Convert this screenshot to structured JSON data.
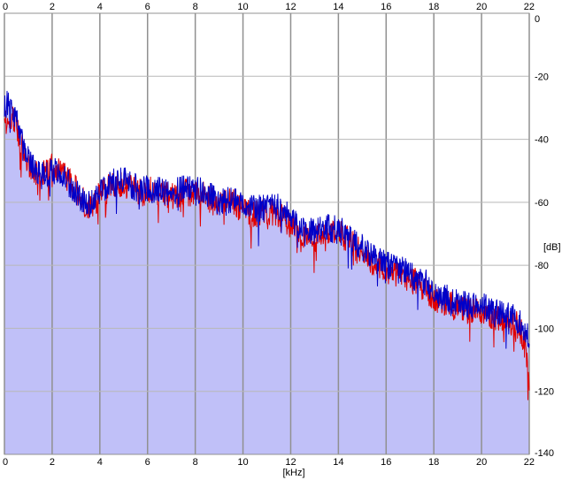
{
  "chart_data": {
    "type": "area",
    "title": "",
    "xlabel": "[kHz]",
    "ylabel": "[dB]",
    "xlim": [
      0,
      22
    ],
    "ylim": [
      -140,
      0
    ],
    "x_ticks": [
      "0",
      "2",
      "4",
      "6",
      "8",
      "10",
      "12",
      "14",
      "16",
      "18",
      "20",
      "22"
    ],
    "y_ticks": [
      "0",
      "-20",
      "-40",
      "-60",
      "-80",
      "-100",
      "-120",
      "-140"
    ],
    "y_tick_values": [
      0,
      -20,
      -40,
      -60,
      -80,
      -100,
      -120,
      -140
    ],
    "grid": true,
    "fill_color": "#c0c0f8",
    "series": [
      {
        "color": "#e00000",
        "x": [
          0.0,
          0.2,
          0.4,
          0.6,
          0.8,
          1.0,
          1.2,
          1.5,
          1.8,
          2.0,
          2.3,
          2.6,
          2.8,
          3.0,
          3.2,
          3.4,
          3.6,
          3.8,
          4.0,
          4.3,
          4.6,
          5.0,
          5.4,
          5.8,
          6.2,
          6.6,
          7.0,
          7.4,
          7.8,
          8.0,
          8.4,
          8.8,
          9.2,
          9.6,
          10.0,
          10.4,
          10.8,
          11.2,
          11.6,
          12.0,
          12.4,
          12.8,
          13.2,
          13.6,
          14.0,
          14.4,
          14.8,
          15.2,
          15.6,
          16.0,
          16.4,
          16.8,
          17.2,
          17.6,
          18.0,
          18.4,
          18.8,
          19.2,
          19.6,
          20.0,
          20.4,
          20.8,
          21.2,
          21.5,
          21.7,
          21.85,
          22.0
        ],
        "y": [
          -35,
          -32,
          -34,
          -38,
          -44,
          -47,
          -50,
          -52,
          -50,
          -48,
          -50,
          -52,
          -54,
          -56,
          -58,
          -61,
          -62,
          -60,
          -57,
          -56,
          -54,
          -54,
          -56,
          -57,
          -56,
          -57,
          -58,
          -57,
          -57,
          -57,
          -58,
          -60,
          -60,
          -60,
          -62,
          -64,
          -63,
          -63,
          -64,
          -67,
          -70,
          -71,
          -70,
          -69,
          -70,
          -72,
          -75,
          -78,
          -80,
          -82,
          -83,
          -84,
          -85,
          -87,
          -90,
          -92,
          -93,
          -94,
          -95,
          -95,
          -96,
          -97,
          -98,
          -99,
          -102,
          -107,
          -118
        ]
      },
      {
        "color": "#0000c8",
        "x": [
          0.0,
          0.2,
          0.4,
          0.6,
          0.8,
          1.0,
          1.2,
          1.5,
          1.8,
          2.0,
          2.3,
          2.6,
          2.8,
          3.0,
          3.2,
          3.4,
          3.6,
          3.8,
          4.0,
          4.3,
          4.6,
          5.0,
          5.4,
          5.8,
          6.2,
          6.6,
          7.0,
          7.4,
          7.8,
          8.0,
          8.4,
          8.8,
          9.2,
          9.6,
          10.0,
          10.4,
          10.8,
          11.2,
          11.6,
          12.0,
          12.4,
          12.8,
          13.2,
          13.6,
          14.0,
          14.4,
          14.8,
          15.2,
          15.6,
          16.0,
          16.4,
          16.8,
          17.2,
          17.6,
          18.0,
          18.4,
          18.8,
          19.2,
          19.6,
          20.0,
          20.4,
          20.8,
          21.2,
          21.5,
          21.7,
          21.85,
          22.0
        ],
        "y": [
          -30,
          -27,
          -32,
          -36,
          -42,
          -46,
          -49,
          -52,
          -51,
          -50,
          -51,
          -53,
          -55,
          -57,
          -58,
          -60,
          -61,
          -59,
          -56,
          -55,
          -53,
          -53,
          -55,
          -56,
          -56,
          -56,
          -57,
          -56,
          -56,
          -56,
          -57,
          -59,
          -60,
          -59,
          -61,
          -62,
          -62,
          -61,
          -62,
          -65,
          -68,
          -69,
          -69,
          -68,
          -69,
          -70,
          -73,
          -76,
          -78,
          -80,
          -81,
          -82,
          -84,
          -85,
          -88,
          -90,
          -91,
          -92,
          -93,
          -93,
          -94,
          -95,
          -96,
          -97,
          -99,
          -100,
          -103
        ]
      }
    ]
  }
}
